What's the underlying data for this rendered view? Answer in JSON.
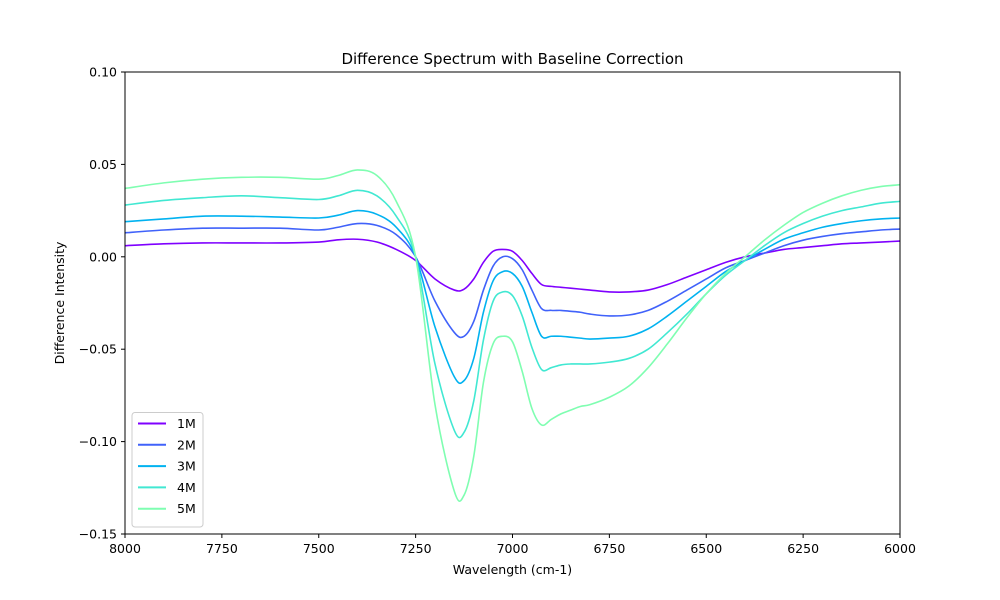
{
  "chart_data": {
    "type": "line",
    "title": "Difference Spectrum with Baseline Correction",
    "xlabel": "Wavelength (cm-1)",
    "ylabel": "Difference Intensity",
    "xlim": [
      8000,
      6000
    ],
    "ylim": [
      -0.15,
      0.1
    ],
    "x_inverted": true,
    "xticks": [
      8000,
      7750,
      7500,
      7250,
      7000,
      6750,
      6500,
      6250,
      6000
    ],
    "xtick_labels": [
      "8000",
      "7750",
      "7500",
      "7250",
      "7000",
      "6750",
      "6500",
      "6250",
      "6000"
    ],
    "yticks": [
      0.1,
      0.05,
      0.0,
      -0.05,
      -0.1,
      -0.15
    ],
    "ytick_labels": [
      "0.10",
      "0.05",
      "0.00",
      "−0.05",
      "−0.10",
      "−0.15"
    ],
    "grid": false,
    "legend_position": "lower-left",
    "x": [
      8000,
      7900,
      7800,
      7700,
      7600,
      7500,
      7450,
      7400,
      7350,
      7300,
      7250,
      7200,
      7150,
      7125,
      7100,
      7075,
      7050,
      7025,
      7000,
      6975,
      6950,
      6925,
      6900,
      6875,
      6850,
      6825,
      6800,
      6750,
      6700,
      6650,
      6600,
      6550,
      6500,
      6450,
      6400,
      6350,
      6300,
      6250,
      6200,
      6150,
      6100,
      6050,
      6000
    ],
    "series": [
      {
        "name": "1M",
        "color": "#7f00ff",
        "values": [
          0.006,
          0.007,
          0.0075,
          0.0075,
          0.0075,
          0.008,
          0.0092,
          0.0095,
          0.008,
          0.004,
          -0.002,
          -0.012,
          -0.018,
          -0.0175,
          -0.012,
          -0.003,
          0.003,
          0.004,
          0.003,
          -0.002,
          -0.009,
          -0.015,
          -0.016,
          -0.0165,
          -0.017,
          -0.0175,
          -0.018,
          -0.019,
          -0.019,
          -0.018,
          -0.015,
          -0.011,
          -0.007,
          -0.003,
          0.0,
          0.002,
          0.004,
          0.005,
          0.006,
          0.007,
          0.0075,
          0.008,
          0.0085
        ]
      },
      {
        "name": "2M",
        "color": "#4062fa",
        "values": [
          0.013,
          0.0145,
          0.0155,
          0.0155,
          0.0155,
          0.0145,
          0.016,
          0.018,
          0.017,
          0.012,
          0.0,
          -0.024,
          -0.041,
          -0.043,
          -0.035,
          -0.018,
          -0.005,
          0.0,
          -0.001,
          -0.007,
          -0.018,
          -0.028,
          -0.029,
          -0.029,
          -0.0295,
          -0.03,
          -0.031,
          -0.032,
          -0.0315,
          -0.029,
          -0.024,
          -0.018,
          -0.012,
          -0.006,
          -0.002,
          0.002,
          0.006,
          0.009,
          0.011,
          0.0125,
          0.0135,
          0.0145,
          0.015
        ]
      },
      {
        "name": "3M",
        "color": "#01b2f0",
        "values": [
          0.019,
          0.0205,
          0.022,
          0.022,
          0.0215,
          0.021,
          0.0225,
          0.025,
          0.023,
          0.016,
          0.0,
          -0.038,
          -0.065,
          -0.067,
          -0.055,
          -0.03,
          -0.013,
          -0.008,
          -0.009,
          -0.016,
          -0.03,
          -0.043,
          -0.043,
          -0.043,
          -0.0435,
          -0.044,
          -0.0445,
          -0.044,
          -0.043,
          -0.039,
          -0.032,
          -0.024,
          -0.016,
          -0.008,
          -0.002,
          0.004,
          0.0095,
          0.013,
          0.016,
          0.018,
          0.0195,
          0.0205,
          0.021
        ]
      },
      {
        "name": "4M",
        "color": "#41e8d2",
        "values": [
          0.028,
          0.0305,
          0.032,
          0.033,
          0.032,
          0.031,
          0.033,
          0.036,
          0.033,
          0.022,
          0.0,
          -0.058,
          -0.094,
          -0.095,
          -0.078,
          -0.045,
          -0.024,
          -0.019,
          -0.021,
          -0.032,
          -0.049,
          -0.061,
          -0.06,
          -0.0585,
          -0.058,
          -0.058,
          -0.058,
          -0.057,
          -0.055,
          -0.05,
          -0.041,
          -0.031,
          -0.02,
          -0.01,
          -0.002,
          0.006,
          0.013,
          0.018,
          0.022,
          0.025,
          0.027,
          0.029,
          0.03
        ]
      },
      {
        "name": "5M",
        "color": "#7ffeb1",
        "values": [
          0.037,
          0.04,
          0.042,
          0.043,
          0.043,
          0.042,
          0.044,
          0.047,
          0.044,
          0.03,
          0.0,
          -0.08,
          -0.127,
          -0.129,
          -0.108,
          -0.068,
          -0.047,
          -0.043,
          -0.046,
          -0.062,
          -0.082,
          -0.091,
          -0.088,
          -0.085,
          -0.083,
          -0.081,
          -0.08,
          -0.076,
          -0.07,
          -0.06,
          -0.047,
          -0.033,
          -0.02,
          -0.009,
          0.0,
          0.009,
          0.017,
          0.024,
          0.029,
          0.033,
          0.036,
          0.038,
          0.039
        ]
      }
    ]
  }
}
